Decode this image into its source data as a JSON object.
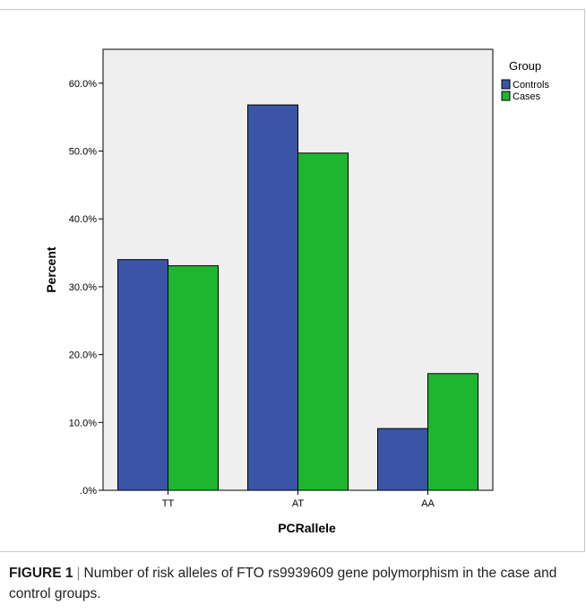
{
  "chart_data": {
    "type": "bar",
    "categories": [
      "TT",
      "AT",
      "AA"
    ],
    "series": [
      {
        "name": "Controls",
        "values": [
          34.0,
          56.8,
          9.1
        ],
        "color": "#3b55a6"
      },
      {
        "name": "Cases",
        "values": [
          33.1,
          49.7,
          17.2
        ],
        "color": "#1fb62f"
      }
    ],
    "xlabel": "PCRallele",
    "ylabel": "Percent",
    "ylim": [
      0,
      65
    ],
    "yticks": [
      ".0%",
      "10.0%",
      "20.0%",
      "30.0%",
      "40.0%",
      "50.0%",
      "60.0%"
    ],
    "ytick_values": [
      0,
      10,
      20,
      30,
      40,
      50,
      60
    ],
    "legend_title": "Group",
    "legend_position": "top-right",
    "plot_background": "#efefef",
    "grid": false
  },
  "caption": {
    "label": "FIGURE 1",
    "separator": "|",
    "text": "Number of risk alleles of FTO rs9939609 gene polymorphism in the case and control groups."
  }
}
